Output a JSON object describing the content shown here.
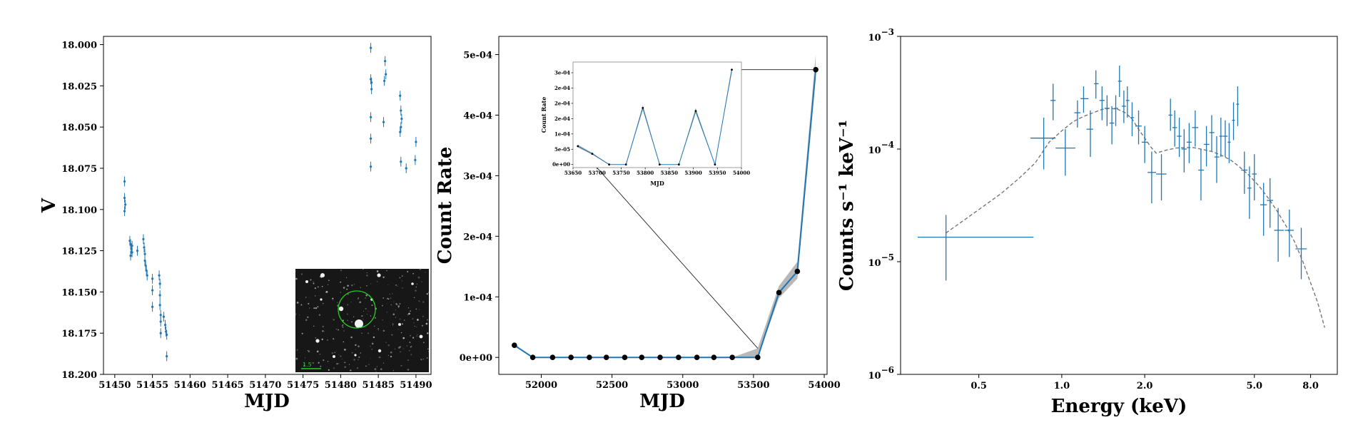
{
  "colors": {
    "series": "#1f77b4",
    "model": "#777777",
    "band": "#9a9a9a",
    "marker": "#000000",
    "circle": "#22cc22",
    "scalebar": "#22cc22"
  },
  "chart_data": [
    {
      "type": "scatter",
      "title": "",
      "xlabel": "MJD",
      "ylabel": "V",
      "xlim": [
        51448.5,
        51492
      ],
      "ylim": [
        18.2,
        17.995
      ],
      "y_inverted": true,
      "x_ticks": [
        51450,
        51455,
        51460,
        51465,
        51470,
        51475,
        51480,
        51485,
        51490
      ],
      "y_ticks": [
        18.0,
        18.025,
        18.05,
        18.075,
        18.1,
        18.125,
        18.15,
        18.175,
        18.2
      ],
      "y_tick_labels": [
        "18.000",
        "18.025",
        "18.050",
        "18.075",
        "18.100",
        "18.125",
        "18.150",
        "18.175",
        "18.200"
      ],
      "points": [
        [
          51451.3,
          18.083,
          0.003
        ],
        [
          51451.3,
          18.093,
          0.003
        ],
        [
          51451.4,
          18.097,
          0.003
        ],
        [
          51451.3,
          18.101,
          0.003
        ],
        [
          51452.0,
          18.119,
          0.003
        ],
        [
          51452.1,
          18.121,
          0.003
        ],
        [
          51452.2,
          18.124,
          0.003
        ],
        [
          51452.3,
          18.126,
          0.003
        ],
        [
          51452.1,
          18.128,
          0.003
        ],
        [
          51452.3,
          18.122,
          0.003
        ],
        [
          51453.0,
          18.125,
          0.003
        ],
        [
          51453.8,
          18.118,
          0.003
        ],
        [
          51453.9,
          18.123,
          0.003
        ],
        [
          51454.0,
          18.127,
          0.003
        ],
        [
          51454.0,
          18.131,
          0.003
        ],
        [
          51454.1,
          18.134,
          0.003
        ],
        [
          51454.2,
          18.137,
          0.003
        ],
        [
          51454.3,
          18.14,
          0.003
        ],
        [
          51455.0,
          18.142,
          0.003
        ],
        [
          51455.0,
          18.149,
          0.003
        ],
        [
          51455.0,
          18.159,
          0.003
        ],
        [
          51455.9,
          18.14,
          0.003
        ],
        [
          51456.0,
          18.145,
          0.003
        ],
        [
          51456.0,
          18.152,
          0.003
        ],
        [
          51456.0,
          18.158,
          0.003
        ],
        [
          51456.1,
          18.164,
          0.003
        ],
        [
          51456.1,
          18.168,
          0.003
        ],
        [
          51456.1,
          18.175,
          0.003
        ],
        [
          51456.5,
          18.165,
          0.003
        ],
        [
          51456.7,
          18.17,
          0.003
        ],
        [
          51456.8,
          18.174,
          0.003
        ],
        [
          51456.9,
          18.176,
          0.003
        ],
        [
          51456.9,
          18.189,
          0.003
        ],
        [
          51484.0,
          18.002,
          0.003
        ],
        [
          51484.0,
          18.021,
          0.003
        ],
        [
          51484.1,
          18.023,
          0.003
        ],
        [
          51484.1,
          18.027,
          0.003
        ],
        [
          51484.0,
          18.044,
          0.003
        ],
        [
          51484.0,
          18.057,
          0.003
        ],
        [
          51484.0,
          18.074,
          0.003
        ],
        [
          51485.9,
          18.01,
          0.003
        ],
        [
          51486.0,
          18.018,
          0.003
        ],
        [
          51485.8,
          18.022,
          0.003
        ],
        [
          51485.7,
          18.047,
          0.003
        ],
        [
          51487.9,
          18.031,
          0.003
        ],
        [
          51488.0,
          18.04,
          0.003
        ],
        [
          51488.1,
          18.045,
          0.003
        ],
        [
          51488.0,
          18.05,
          0.003
        ],
        [
          51487.9,
          18.053,
          0.003
        ],
        [
          51488.0,
          18.071,
          0.003
        ],
        [
          51488.7,
          18.075,
          0.003
        ],
        [
          51490.0,
          18.059,
          0.003
        ],
        [
          51489.9,
          18.07,
          0.003
        ]
      ],
      "inset_image": {
        "scale_label": "1.5\""
      }
    },
    {
      "type": "line",
      "title": "",
      "xlabel": "MJD",
      "ylabel": "Count Rate",
      "xlim": [
        51700,
        54020
      ],
      "ylim": [
        -2.8e-05,
        0.00053
      ],
      "x_ticks": [
        52000,
        52500,
        53000,
        53500,
        54000
      ],
      "x_tick_labels": [
        "52000",
        "52500",
        "53000",
        "53500",
        "54000"
      ],
      "y_ticks": [
        0,
        0.0001,
        0.0002,
        0.0003,
        0.0004,
        0.0005
      ],
      "y_tick_labels": [
        "0e+00",
        "1e-04",
        "2e-04",
        "3e-04",
        "4e-04",
        "5e-04"
      ],
      "x": [
        51810,
        51940,
        52080,
        52210,
        52340,
        52460,
        52590,
        52710,
        52840,
        52970,
        53100,
        53220,
        53350,
        53530,
        53680,
        53810,
        53940
      ],
      "y": [
        2e-05,
        0,
        0,
        0,
        0,
        0,
        0,
        0,
        0,
        0,
        0,
        0,
        0,
        0,
        0.000107,
        0.000142,
        0.000475
      ],
      "band_lo": [
        1.8e-05,
        0,
        0,
        0,
        0,
        0,
        0,
        0,
        0,
        0,
        0,
        0,
        0,
        0,
        9.8e-05,
        0.00013,
        0.00046
      ],
      "band_hi": [
        2.2e-05,
        0,
        0,
        0,
        0,
        0,
        0,
        0,
        0,
        0,
        0,
        0,
        0,
        1.5e-05,
        0.000118,
        0.000158,
        0.0005
      ],
      "inset": {
        "xlabel": "MJD",
        "ylabel": "Count Rate",
        "xlim": [
          53650,
          54000
        ],
        "ylim": [
          -1e-05,
          0.000335
        ],
        "x_ticks": [
          53650,
          53700,
          53750,
          53800,
          53850,
          53900,
          53950,
          54000
        ],
        "x_tick_labels": [
          "53650",
          "53700",
          "53750",
          "53800",
          "53850",
          "53900",
          "53950",
          "54000"
        ],
        "y_ticks": [
          0,
          5e-05,
          0.0001,
          0.00015,
          0.0002,
          0.00025,
          0.0003
        ],
        "y_tick_labels": [
          "0e+00",
          "5e-05",
          "1e-04",
          "2e-04",
          "2e-04",
          "2e-04",
          "3e-04"
        ],
        "x": [
          53660,
          53690,
          53725,
          53760,
          53795,
          53830,
          53870,
          53905,
          53945,
          53980
        ],
        "y": [
          6e-05,
          3.5e-05,
          0,
          0,
          0.000185,
          0,
          0,
          0.000175,
          0,
          0.00031
        ],
        "band_lo": [
          5.6e-05,
          3.2e-05,
          0,
          0,
          0.000178,
          0,
          0,
          0.000168,
          0,
          0.0003
        ],
        "band_hi": [
          6.5e-05,
          3.8e-05,
          0,
          0,
          0.000195,
          0,
          0,
          0.000185,
          0,
          0.00032
        ]
      }
    },
    {
      "type": "scatter",
      "title": "",
      "xlabel": "Energy (keV)",
      "ylabel": "Counts s⁻¹ keV⁻¹",
      "xscale": "log",
      "yscale": "log",
      "xlim": [
        0.26,
        10.0
      ],
      "ylim": [
        1e-06,
        0.001
      ],
      "x_ticks": [
        0.5,
        1.0,
        2.0,
        5.0,
        8.0
      ],
      "x_tick_labels": [
        "0.5",
        "1.0",
        "2.0",
        "5.0",
        "8.0"
      ],
      "y_ticks": [
        1e-06,
        1e-05,
        0.0001,
        0.001
      ],
      "y_tick_mantissa": "10",
      "y_tick_exponents": [
        "−6",
        "−5",
        "−4",
        "−3"
      ],
      "data": [
        [
          0.38,
          1.65e-05,
          0.3,
          0.79,
          6.8e-06,
          2.6e-05
        ],
        [
          0.86,
          0.000125,
          0.77,
          0.95,
          6.6e-05,
          0.00019
        ],
        [
          0.93,
          0.00027,
          0.91,
          0.95,
          0.00018,
          0.00038
        ],
        [
          1.03,
          0.000102,
          0.95,
          1.12,
          5.8e-05,
          0.00015
        ],
        [
          1.14,
          0.00021,
          1.11,
          1.17,
          0.000155,
          0.00027
        ],
        [
          1.2,
          0.00028,
          1.17,
          1.25,
          0.00021,
          0.00036
        ],
        [
          1.27,
          0.00015,
          1.23,
          1.3,
          8.5e-05,
          0.00022
        ],
        [
          1.33,
          0.00038,
          1.31,
          1.36,
          0.00028,
          0.0005
        ],
        [
          1.4,
          0.00027,
          1.37,
          1.43,
          0.00018,
          0.00036
        ],
        [
          1.46,
          0.00023,
          1.43,
          1.49,
          0.00016,
          0.0003
        ],
        [
          1.52,
          0.00017,
          1.49,
          1.55,
          0.00011,
          0.00024
        ],
        [
          1.57,
          0.00023,
          1.55,
          1.6,
          0.00016,
          0.0003
        ],
        [
          1.62,
          0.0004,
          1.6,
          1.65,
          0.00029,
          0.00055
        ],
        [
          1.68,
          0.00024,
          1.65,
          1.71,
          0.00017,
          0.00033
        ],
        [
          1.73,
          0.00027,
          1.71,
          1.76,
          0.00019,
          0.00036
        ],
        [
          1.8,
          0.00019,
          1.77,
          1.83,
          0.00013,
          0.00026
        ],
        [
          1.9,
          0.00016,
          1.85,
          1.95,
          0.00011,
          0.00022
        ],
        [
          2.0,
          0.000115,
          1.95,
          2.05,
          7.5e-05,
          0.00016
        ],
        [
          2.12,
          6.2e-05,
          2.05,
          2.2,
          3.3e-05,
          9.5e-05
        ],
        [
          2.3,
          6e-05,
          2.2,
          2.4,
          3.5e-05,
          9e-05
        ],
        [
          2.48,
          0.0002,
          2.44,
          2.52,
          0.000145,
          0.00028
        ],
        [
          2.57,
          0.000155,
          2.52,
          2.62,
          0.000105,
          0.00022
        ],
        [
          2.67,
          0.00013,
          2.62,
          2.72,
          8.5e-05,
          0.00019
        ],
        [
          2.78,
          0.0001,
          2.72,
          2.84,
          6.2e-05,
          0.00015
        ],
        [
          2.9,
          0.000115,
          2.84,
          2.96,
          7.5e-05,
          0.00017
        ],
        [
          3.05,
          0.000155,
          2.97,
          3.13,
          0.000105,
          0.00022
        ],
        [
          3.2,
          6.5e-05,
          3.13,
          3.28,
          3.5e-05,
          0.0001
        ],
        [
          3.35,
          0.00011,
          3.28,
          3.43,
          7e-05,
          0.00016
        ],
        [
          3.5,
          0.00014,
          3.43,
          3.58,
          9.5e-05,
          0.0002
        ],
        [
          3.65,
          8.5e-05,
          3.58,
          3.73,
          5e-05,
          0.00013
        ],
        [
          3.78,
          0.00013,
          3.73,
          3.84,
          8.5e-05,
          0.00019
        ],
        [
          3.92,
          0.00013,
          3.85,
          4.0,
          8.5e-05,
          0.00018
        ],
        [
          4.05,
          0.000115,
          4.0,
          4.1,
          7.5e-05,
          0.00017
        ],
        [
          4.2,
          0.00018,
          4.15,
          4.25,
          0.00012,
          0.00026
        ],
        [
          4.35,
          0.00025,
          4.3,
          4.4,
          0.00016,
          0.00036
        ],
        [
          4.6,
          6.5e-05,
          4.48,
          4.72,
          4e-05,
          9.5e-05
        ],
        [
          4.8,
          4.5e-05,
          4.72,
          4.88,
          2.4e-05,
          7e-05
        ],
        [
          5.0,
          6e-05,
          4.9,
          5.1,
          3.5e-05,
          9e-05
        ],
        [
          5.4,
          3.2e-05,
          5.25,
          5.55,
          1.7e-05,
          5e-05
        ],
        [
          5.7,
          3.5e-05,
          5.55,
          5.85,
          2e-05,
          5.5e-05
        ],
        [
          6.1,
          1.9e-05,
          5.9,
          6.4,
          1e-05,
          3e-05
        ],
        [
          6.7,
          1.9e-05,
          6.45,
          6.95,
          1.1e-05,
          2.9e-05
        ],
        [
          7.4,
          1.3e-05,
          7.05,
          7.75,
          7e-06,
          2e-05
        ]
      ],
      "model_x": [
        0.38,
        0.5,
        0.6,
        0.7,
        0.8,
        0.9,
        1.0,
        1.1,
        1.2,
        1.3,
        1.4,
        1.5,
        1.6,
        1.7,
        1.8,
        1.9,
        2.0,
        2.1,
        2.2,
        2.4,
        2.6,
        2.8,
        3.0,
        3.2,
        3.5,
        3.8,
        4.1,
        4.4,
        4.8,
        5.2,
        5.6,
        6.0,
        6.5,
        7.0,
        7.5,
        8.0,
        8.5,
        9.0
      ],
      "model_y": [
        1.8e-05,
        2.9e-05,
        4e-05,
        5.5e-05,
        7.5e-05,
        0.000115,
        0.000145,
        0.000175,
        0.000195,
        0.00021,
        0.000225,
        0.00023,
        0.000225,
        0.00021,
        0.000185,
        0.00015,
        0.000125,
        0.000105,
        9.2e-05,
        9.8e-05,
        0.000102,
        0.000103,
        0.000103,
        0.0001,
        9.5e-05,
        8.8e-05,
        8e-05,
        7e-05,
        5.8e-05,
        4.7e-05,
        3.7e-05,
        2.9e-05,
        2.1e-05,
        1.5e-05,
        1e-05,
        6.5e-06,
        4.3e-06,
        2.6e-06
      ]
    }
  ]
}
